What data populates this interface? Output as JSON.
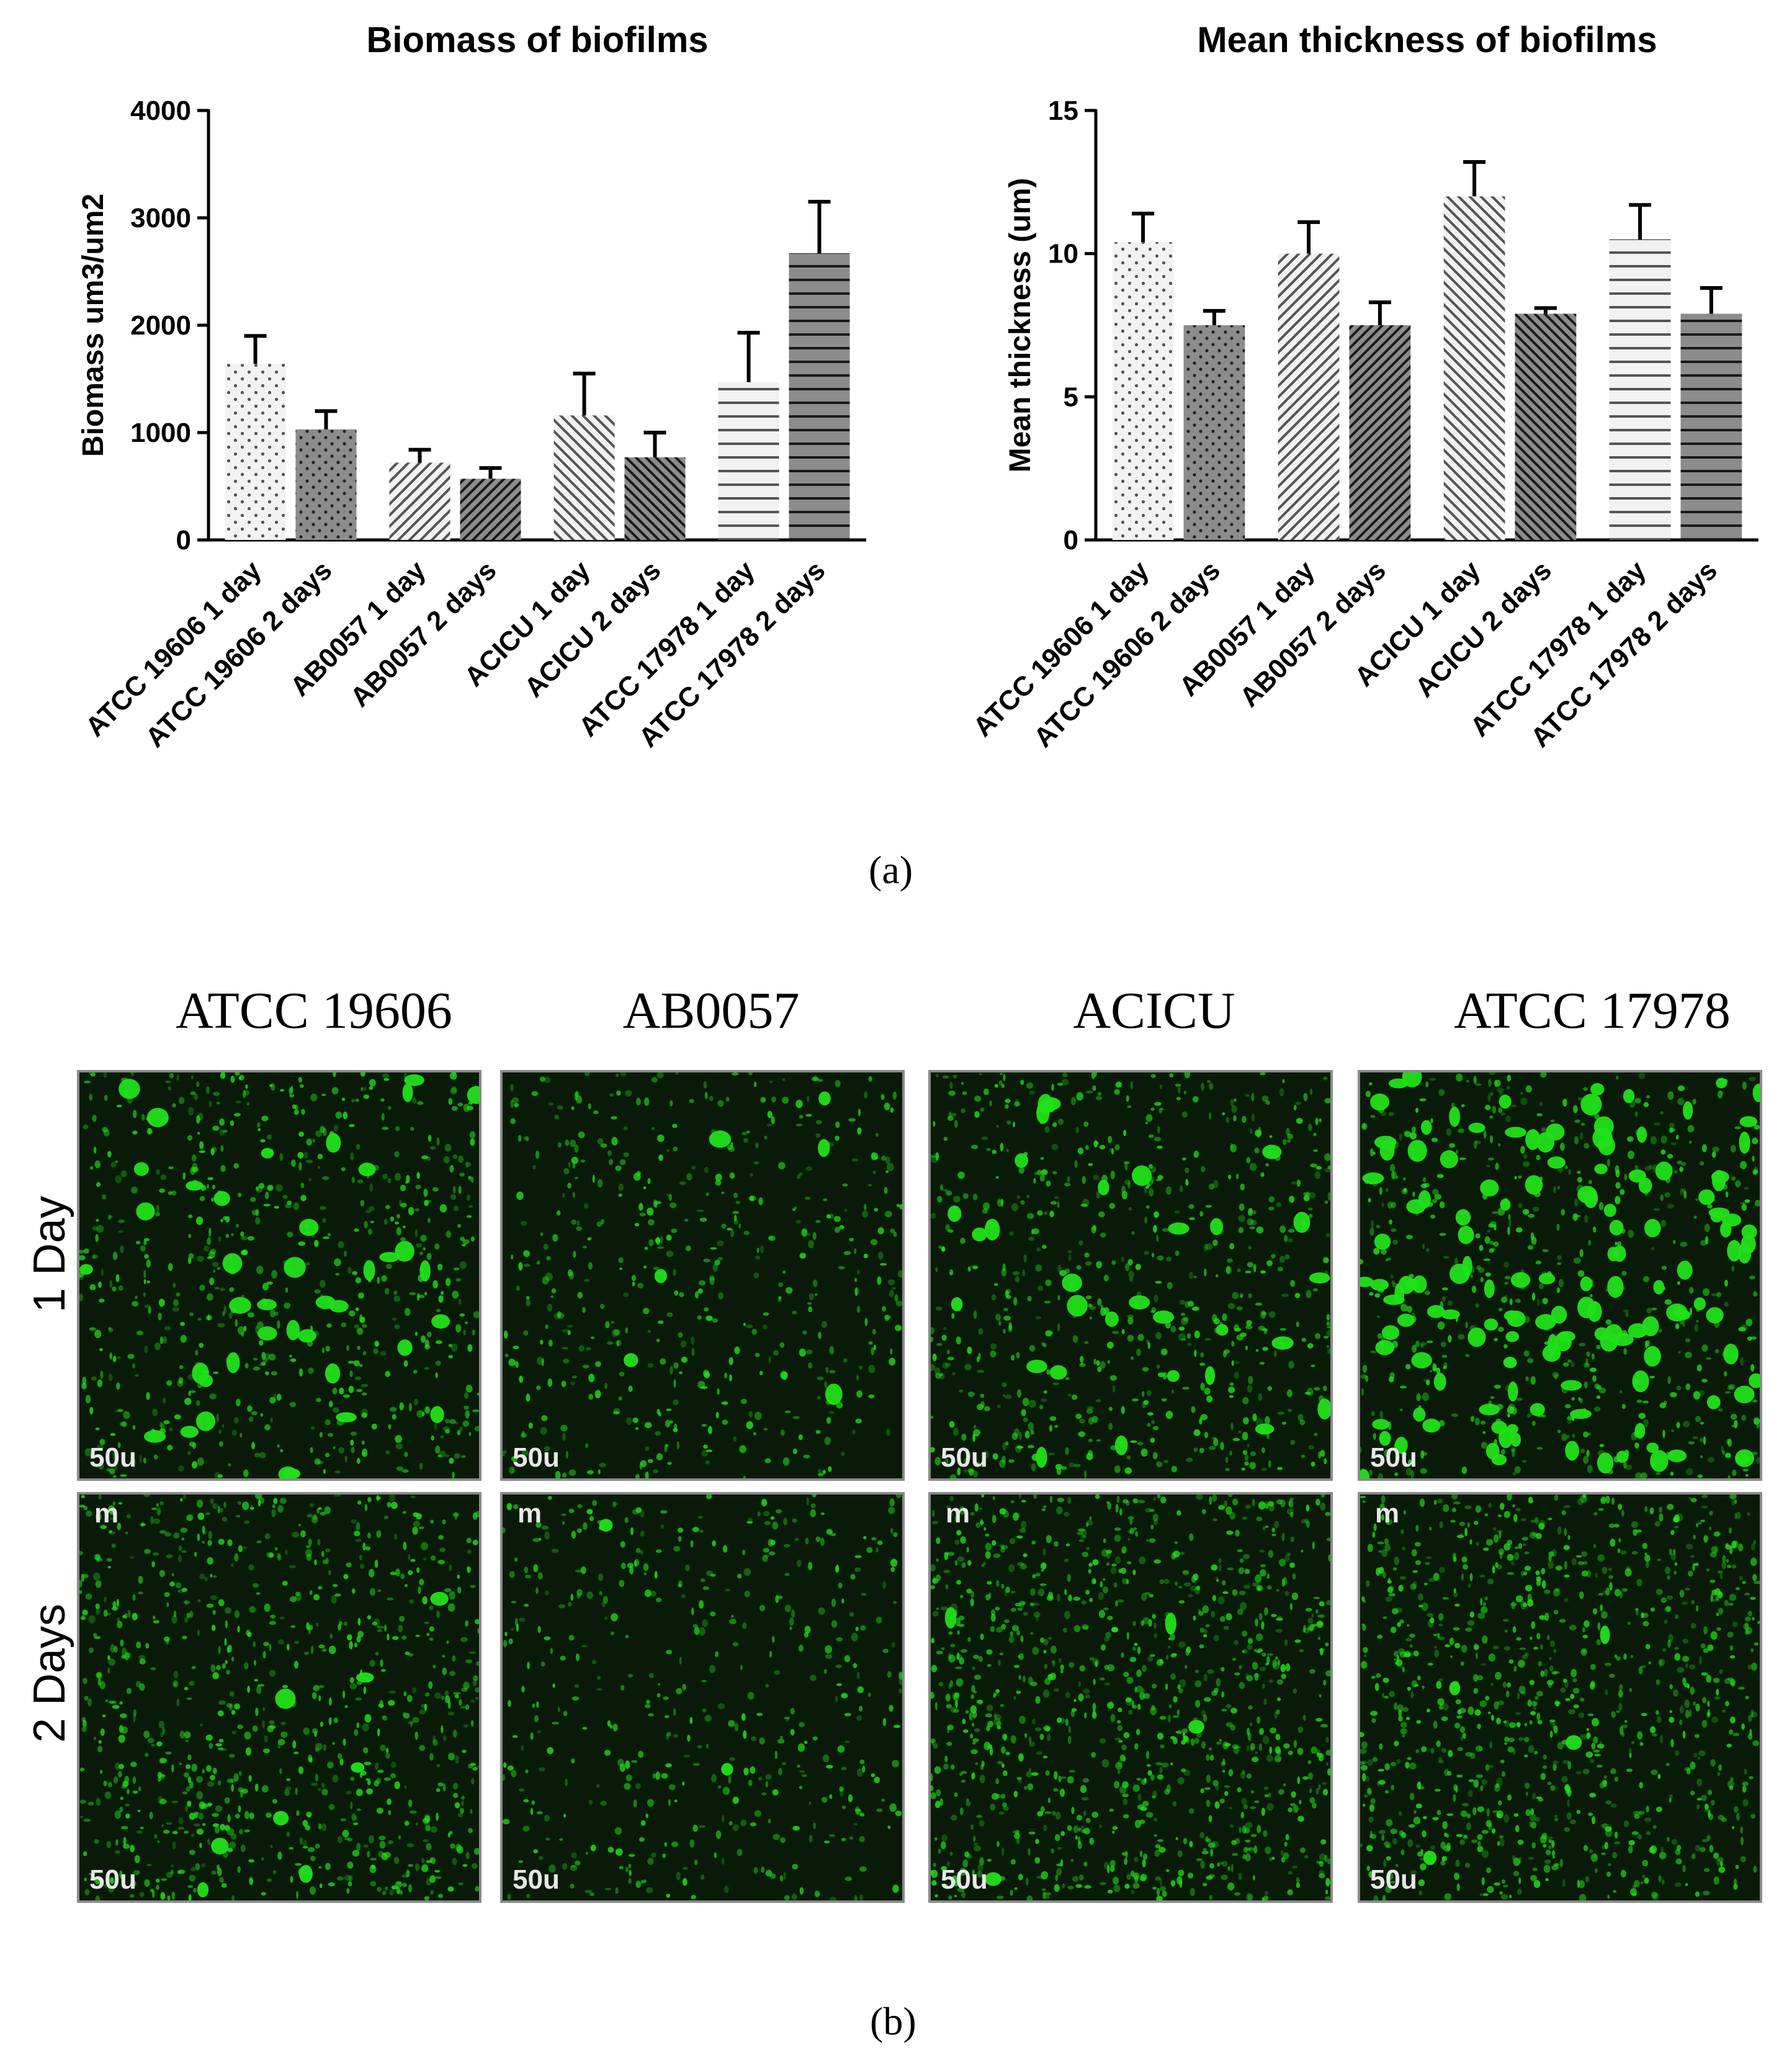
{
  "chart_data": [
    {
      "type": "bar",
      "title": "Biomass of biofilms",
      "ylabel": "Biomass um3/um2",
      "xlabel": "",
      "ylim": [
        0,
        4000
      ],
      "yticks": [
        "0",
        "1000",
        "2000",
        "3000",
        "4000"
      ],
      "categories": [
        "ATCC 19606 1 day",
        "ATCC 19606 2 days",
        "AB0057 1 day",
        "AB0057 2 days",
        "ACICU 1 day",
        "ACICU 2 days",
        "ATCC 17978 1 day",
        "ATCC 17978 2 days"
      ],
      "values": [
        1640,
        1030,
        720,
        570,
        1160,
        770,
        1470,
        2670
      ],
      "errors": [
        260,
        170,
        120,
        100,
        390,
        230,
        460,
        480
      ]
    },
    {
      "type": "bar",
      "title": "Mean thickness of biofilms",
      "ylabel": "Mean thickness (um)",
      "xlabel": "",
      "ylim": [
        0,
        15
      ],
      "yticks": [
        "0",
        "5",
        "10",
        "15"
      ],
      "categories": [
        "ATCC 19606 1 day",
        "ATCC 19606 2 days",
        "AB0057 1 day",
        "AB0057 2 days",
        "ACICU 1 day",
        "ACICU 2 days",
        "ATCC 17978 1 day",
        "ATCC 17978 2 days"
      ],
      "values": [
        10.4,
        7.5,
        10.0,
        7.5,
        12.0,
        7.9,
        10.5,
        7.9
      ],
      "errors": [
        1.0,
        0.5,
        1.1,
        0.8,
        1.2,
        0.2,
        1.2,
        0.9
      ]
    }
  ],
  "panel_labels": {
    "a": "(a)",
    "b": "(b)"
  },
  "micrographs": {
    "columns": [
      "ATCC 19606",
      "AB0057",
      "ACICU",
      "ATCC 17978"
    ],
    "rows": [
      "1 Day",
      "2 Days"
    ],
    "scale_label": "50u",
    "scale_unit": "m",
    "colors": {
      "fluorescence": "#22e01a",
      "background": "#0a1a08"
    }
  }
}
